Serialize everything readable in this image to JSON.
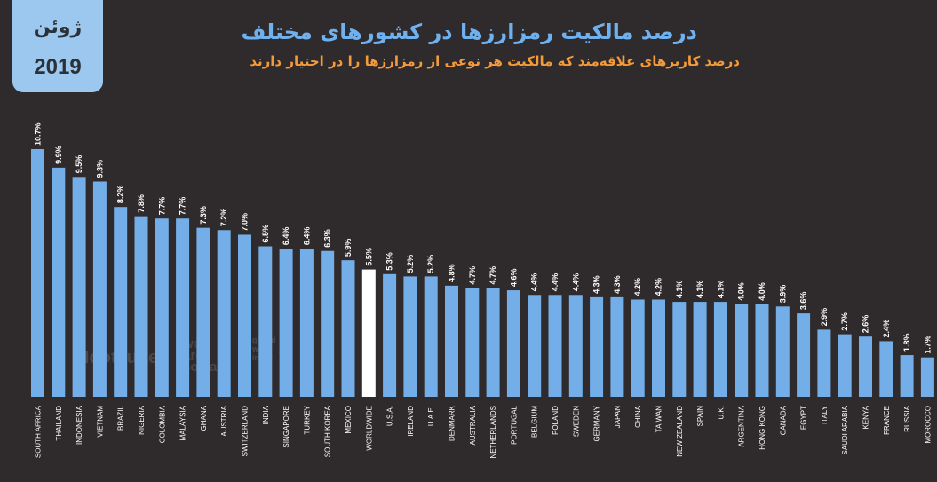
{
  "badge": {
    "month": "ژوئن",
    "year": "2019"
  },
  "watermarks": {
    "hootsuite": "Hootsuite",
    "we_are_social": [
      "we",
      "are",
      "social"
    ],
    "global_web_index": [
      "global",
      "web",
      "index"
    ]
  },
  "chart_data": {
    "type": "bar",
    "title": "درصد مالکیت رمزارزها در کشورهای مختلف",
    "subtitle": "درصد کاربرهای علاقه‌مند که مالکیت هر نوعی از رمزارزها را در اختیار دارند",
    "categories": [
      "SOUTH AFRICA",
      "THAILAND",
      "INDONESIA",
      "VIETNAM",
      "BRAZIL",
      "NIGERIA",
      "COLOMBIA",
      "MALAYSIA",
      "GHANA",
      "AUSTRIA",
      "SWITZERLAND",
      "INDIA",
      "SINGAPORE",
      "TURKEY",
      "SOUTH KOREA",
      "MEXICO",
      "WORLDWIDE",
      "U.S.A.",
      "IRELAND",
      "U.A.E.",
      "DENMARK",
      "AUSTRALIA",
      "NETHERLANDS",
      "PORTUGAL",
      "BELGIUM",
      "POLAND",
      "SWEDEN",
      "GERMANY",
      "JAPAN",
      "CHINA",
      "TAIWAN",
      "NEW ZEALAND",
      "SPAIN",
      "U.K.",
      "ARGENTINA",
      "HONG KONG",
      "CANADA",
      "EGYPT",
      "ITALY",
      "SAUDI ARABIA",
      "KENYA",
      "FRANCE",
      "RUSSIA",
      "MOROCCO"
    ],
    "values": [
      10.7,
      9.9,
      9.5,
      9.3,
      8.2,
      7.8,
      7.7,
      7.7,
      7.3,
      7.2,
      7.0,
      6.5,
      6.4,
      6.4,
      6.3,
      5.9,
      5.5,
      5.3,
      5.2,
      5.2,
      4.8,
      4.7,
      4.7,
      4.6,
      4.4,
      4.4,
      4.4,
      4.3,
      4.3,
      4.2,
      4.2,
      4.1,
      4.1,
      4.1,
      4.0,
      4.0,
      3.9,
      3.6,
      2.9,
      2.7,
      2.6,
      2.4,
      1.8,
      1.7
    ],
    "value_labels": [
      "10.7%",
      "9.9%",
      "9.5%",
      "9.3%",
      "8.2%",
      "7.8%",
      "7.7%",
      "7.7%",
      "7.3%",
      "7.2%",
      "7.0%",
      "6.5%",
      "6.4%",
      "6.4%",
      "6.3%",
      "5.9%",
      "5.5%",
      "5.3%",
      "5.2%",
      "5.2%",
      "4.8%",
      "4.7%",
      "4.7%",
      "4.6%",
      "4.4%",
      "4.4%",
      "4.4%",
      "4.3%",
      "4.3%",
      "4.2%",
      "4.2%",
      "4.1%",
      "4.1%",
      "4.1%",
      "4.0%",
      "4.0%",
      "3.9%",
      "3.6%",
      "2.9%",
      "2.7%",
      "2.6%",
      "2.4%",
      "1.8%",
      "1.7%"
    ],
    "highlight": "WORLDWIDE",
    "colors": {
      "bar": "#74aee8",
      "highlight": "#ffffff",
      "label": "#ffffff"
    },
    "ylim": [
      0,
      10.7
    ]
  }
}
